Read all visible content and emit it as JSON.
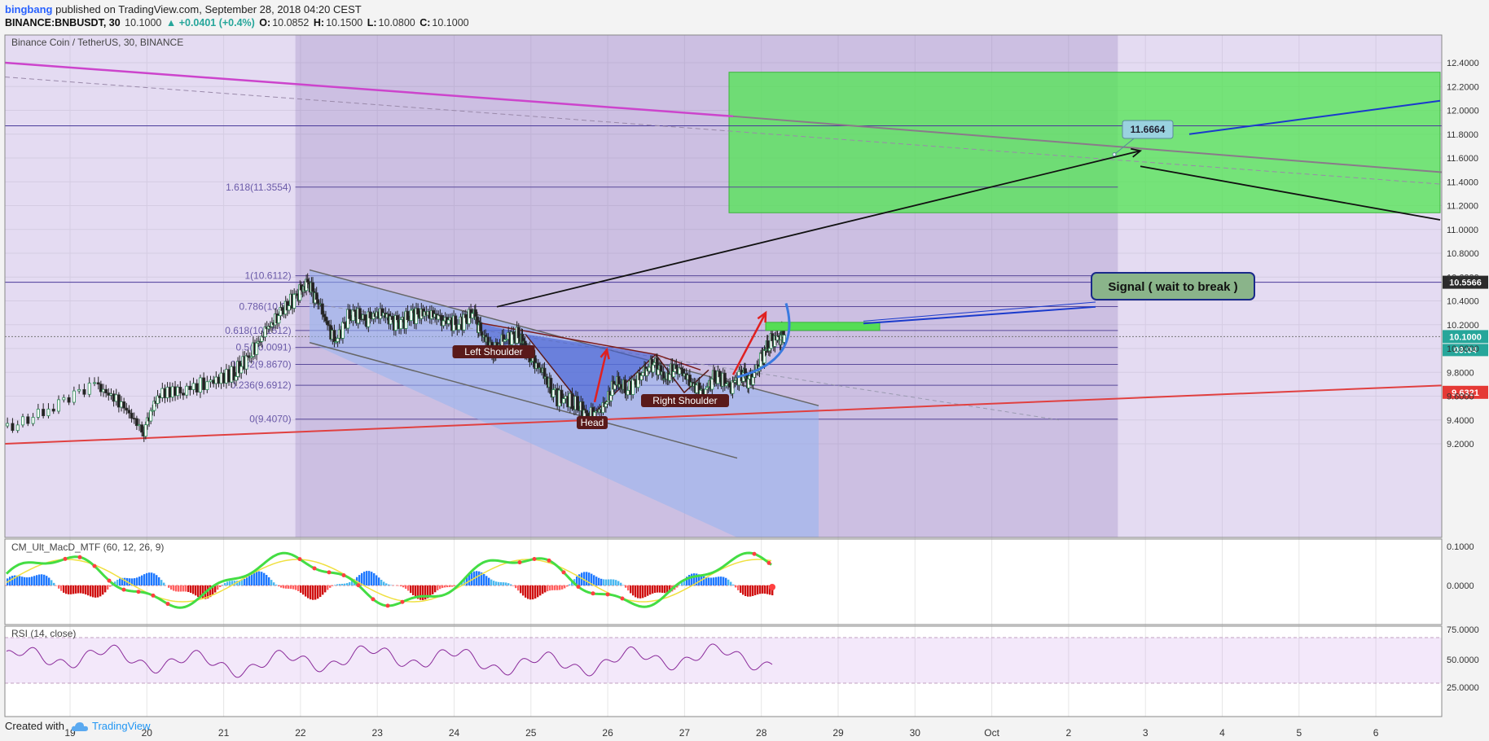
{
  "header": {
    "user": "bingbang",
    "published": "published on TradingView.com, September 28, 2018 04:20 CEST",
    "symbol": "BINANCE:BNBUSDT, 30",
    "last": "10.1000",
    "change": "▲ +0.0401 (+0.4%)",
    "o_label": "O:",
    "o": "10.0852",
    "h_label": "H:",
    "h": "10.1500",
    "l_label": "L:",
    "l": "10.0800",
    "c_label": "C:",
    "c": "10.1000"
  },
  "footer": {
    "created_with": "Created with",
    "brand": "TradingView"
  },
  "chart_data": {
    "type": "candlestick",
    "title": "Binance Coin / TetherUS, 30, BINANCE",
    "x_ticks": [
      "19",
      "20",
      "21",
      "22",
      "23",
      "24",
      "25",
      "26",
      "27",
      "28",
      "29",
      "30",
      "Oct",
      "2",
      "3",
      "4",
      "5",
      "6"
    ],
    "y_ticks": [
      "12.4000",
      "12.2000",
      "12.0000",
      "11.8000",
      "11.6000",
      "11.4000",
      "11.2000",
      "11.0000",
      "10.8000",
      "10.6000",
      "10.4000",
      "10.2000",
      "10.0000",
      "9.8000",
      "9.6000",
      "9.4000",
      "9.2000"
    ],
    "ylim": [
      9.1,
      12.45
    ],
    "price_labels": [
      {
        "value": 10.5566,
        "text": "10.5566",
        "color": "#2b2b2b"
      },
      {
        "value": 10.1,
        "text": "10.1000",
        "color": "#26a69a"
      },
      {
        "value": 9.6321,
        "text": "9.6321",
        "color": "#e53935"
      }
    ],
    "countdown": "09:04",
    "fib_levels": [
      {
        "label": "1.618(11.3554)",
        "value": 11.3554
      },
      {
        "label": "1(10.6112)",
        "value": 10.6112
      },
      {
        "label": "0.786(10.35",
        "value": 10.3522
      },
      {
        "label": "0.618(10.1512)",
        "value": 10.1512
      },
      {
        "label": "0.5(10.0091)",
        "value": 10.0091
      },
      {
        "label": "0.382(9.8670)",
        "value": 9.867
      },
      {
        "label": "0.236(9.6912)",
        "value": 9.6912
      },
      {
        "label": "0(9.4070)",
        "value": 9.407
      }
    ],
    "annotations": {
      "target": "11.6664",
      "signal": "Signal ( wait to break )",
      "left_shoulder": "Left Shoulder",
      "head": "Head",
      "right_shoulder": "Right Shoulder"
    },
    "macd": {
      "name": "CM_Ult_MacD_MTF (60, 12, 26, 9)",
      "y_ticks": [
        "0.1000",
        "0.0000"
      ]
    },
    "rsi": {
      "name": "RSI (14, close)",
      "y_ticks": [
        "75.0000",
        "50.0000",
        "25.0000"
      ]
    },
    "price_path": [
      [
        0,
        9.35
      ],
      [
        0.6,
        9.5
      ],
      [
        1.2,
        9.68
      ],
      [
        1.5,
        9.55
      ],
      [
        1.8,
        9.3
      ],
      [
        2,
        9.62
      ],
      [
        2.3,
        9.65
      ],
      [
        2.7,
        9.72
      ],
      [
        3,
        9.8
      ],
      [
        3.2,
        9.95
      ],
      [
        3.4,
        10.15
      ],
      [
        3.6,
        10.3
      ],
      [
        3.8,
        10.45
      ],
      [
        3.95,
        10.55
      ],
      [
        4.1,
        10.35
      ],
      [
        4.3,
        10.05
      ],
      [
        4.5,
        10.3
      ],
      [
        4.7,
        10.25
      ],
      [
        4.9,
        10.3
      ],
      [
        5.1,
        10.2
      ],
      [
        5.3,
        10.28
      ],
      [
        5.5,
        10.3
      ],
      [
        5.7,
        10.25
      ],
      [
        5.9,
        10.2
      ],
      [
        6.1,
        10.3
      ],
      [
        6.2,
        10.15
      ],
      [
        6.35,
        9.95
      ],
      [
        6.5,
        10.08
      ],
      [
        6.7,
        10.12
      ],
      [
        6.8,
        9.95
      ],
      [
        7,
        9.8
      ],
      [
        7.15,
        9.6
      ],
      [
        7.4,
        9.55
      ],
      [
        7.6,
        9.43
      ],
      [
        7.8,
        9.5
      ],
      [
        7.95,
        9.72
      ],
      [
        8.1,
        9.65
      ],
      [
        8.3,
        9.78
      ],
      [
        8.45,
        9.88
      ],
      [
        8.6,
        9.75
      ],
      [
        8.75,
        9.85
      ],
      [
        8.95,
        9.7
      ],
      [
        9.1,
        9.62
      ],
      [
        9.25,
        9.78
      ],
      [
        9.45,
        9.68
      ],
      [
        9.6,
        9.8
      ],
      [
        9.7,
        9.72
      ],
      [
        9.85,
        9.9
      ],
      [
        9.95,
        10.05
      ],
      [
        10.1,
        10.1
      ],
      [
        10.15,
        10.12
      ]
    ]
  }
}
